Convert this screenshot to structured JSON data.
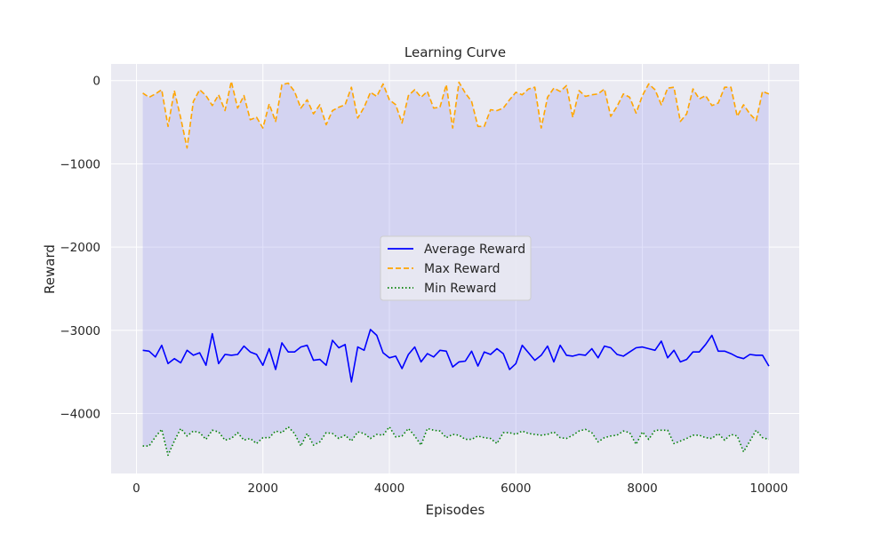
{
  "chart_data": {
    "type": "line",
    "title": "Learning Curve",
    "xlabel": "Episodes",
    "ylabel": "Reward",
    "xlim": [
      -400,
      10480
    ],
    "ylim": [
      -4720,
      200
    ],
    "xticks": [
      0,
      2000,
      4000,
      6000,
      8000,
      10000
    ],
    "yticks": [
      0,
      -1000,
      -2000,
      -3000,
      -4000
    ],
    "xtick_labels": [
      "0",
      "2000",
      "4000",
      "6000",
      "8000",
      "10000"
    ],
    "ytick_labels": [
      "0",
      "−1000",
      "−2000",
      "−3000",
      "−4000"
    ],
    "grid": true,
    "legend_position": "center",
    "fill_between": {
      "upper": "Max Reward",
      "lower": "Min Reward",
      "color": "#a9aaf0"
    },
    "x": [
      100,
      200,
      300,
      400,
      500,
      600,
      700,
      800,
      900,
      1000,
      1100,
      1200,
      1300,
      1400,
      1500,
      1600,
      1700,
      1800,
      1900,
      2000,
      2100,
      2200,
      2300,
      2400,
      2500,
      2600,
      2700,
      2800,
      2900,
      3000,
      3100,
      3200,
      3300,
      3400,
      3500,
      3600,
      3700,
      3800,
      3900,
      4000,
      4100,
      4200,
      4300,
      4400,
      4500,
      4600,
      4700,
      4800,
      4900,
      5000,
      5100,
      5200,
      5300,
      5400,
      5500,
      5600,
      5700,
      5800,
      5900,
      6000,
      6100,
      6200,
      6300,
      6400,
      6500,
      6600,
      6700,
      6800,
      6900,
      7000,
      7100,
      7200,
      7300,
      7400,
      7500,
      7600,
      7700,
      7800,
      7900,
      8000,
      8100,
      8200,
      8300,
      8400,
      8500,
      8600,
      8700,
      8800,
      8900,
      9000,
      9100,
      9200,
      9300,
      9400,
      9500,
      9600,
      9700,
      9800,
      9900,
      10000
    ],
    "series": [
      {
        "name": "Average Reward",
        "color": "#0000ff",
        "style": "solid",
        "values": [
          -3240,
          -3250,
          -3320,
          -3180,
          -3400,
          -3340,
          -3390,
          -3240,
          -3300,
          -3270,
          -3420,
          -3040,
          -3400,
          -3290,
          -3300,
          -3290,
          -3190,
          -3260,
          -3290,
          -3420,
          -3220,
          -3470,
          -3150,
          -3260,
          -3260,
          -3200,
          -3180,
          -3360,
          -3350,
          -3420,
          -3120,
          -3210,
          -3170,
          -3620,
          -3200,
          -3240,
          -2990,
          -3060,
          -3270,
          -3330,
          -3310,
          -3460,
          -3290,
          -3200,
          -3380,
          -3280,
          -3320,
          -3240,
          -3250,
          -3440,
          -3380,
          -3370,
          -3250,
          -3430,
          -3260,
          -3290,
          -3220,
          -3280,
          -3470,
          -3400,
          -3180,
          -3270,
          -3360,
          -3300,
          -3190,
          -3380,
          -3180,
          -3300,
          -3310,
          -3290,
          -3300,
          -3220,
          -3330,
          -3190,
          -3210,
          -3290,
          -3310,
          -3260,
          -3210,
          -3200,
          -3220,
          -3240,
          -3130,
          -3330,
          -3240,
          -3380,
          -3350,
          -3260,
          -3260,
          -3170,
          -3060,
          -3250,
          -3250,
          -3280,
          -3320,
          -3340,
          -3290,
          -3300,
          -3300,
          -3430
        ]
      },
      {
        "name": "Max Reward",
        "color": "#ffa500",
        "style": "dashed",
        "values": [
          -150,
          -200,
          -160,
          -110,
          -550,
          -120,
          -450,
          -810,
          -250,
          -110,
          -180,
          -300,
          -170,
          -360,
          -10,
          -330,
          -180,
          -470,
          -440,
          -570,
          -280,
          -490,
          -50,
          -30,
          -130,
          -330,
          -230,
          -400,
          -290,
          -530,
          -360,
          -320,
          -290,
          -80,
          -450,
          -320,
          -140,
          -190,
          -40,
          -230,
          -290,
          -510,
          -180,
          -110,
          -200,
          -130,
          -330,
          -320,
          -50,
          -570,
          -20,
          -150,
          -250,
          -550,
          -550,
          -350,
          -360,
          -330,
          -230,
          -140,
          -170,
          -100,
          -80,
          -570,
          -200,
          -90,
          -130,
          -60,
          -440,
          -120,
          -190,
          -170,
          -160,
          -100,
          -430,
          -310,
          -160,
          -200,
          -390,
          -180,
          -40,
          -110,
          -290,
          -90,
          -80,
          -490,
          -400,
          -100,
          -220,
          -180,
          -300,
          -270,
          -80,
          -80,
          -430,
          -290,
          -400,
          -480,
          -130,
          -160
        ]
      },
      {
        "name": "Min Reward",
        "color": "#008000",
        "style": "dotted",
        "values": [
          -4390,
          -4390,
          -4280,
          -4190,
          -4500,
          -4330,
          -4180,
          -4270,
          -4210,
          -4230,
          -4310,
          -4200,
          -4220,
          -4320,
          -4300,
          -4230,
          -4320,
          -4300,
          -4360,
          -4290,
          -4290,
          -4210,
          -4230,
          -4160,
          -4240,
          -4390,
          -4240,
          -4380,
          -4340,
          -4230,
          -4240,
          -4300,
          -4260,
          -4330,
          -4220,
          -4240,
          -4300,
          -4250,
          -4260,
          -4160,
          -4280,
          -4270,
          -4180,
          -4270,
          -4380,
          -4180,
          -4200,
          -4210,
          -4290,
          -4250,
          -4260,
          -4310,
          -4310,
          -4270,
          -4290,
          -4300,
          -4360,
          -4230,
          -4230,
          -4250,
          -4210,
          -4240,
          -4250,
          -4260,
          -4250,
          -4220,
          -4290,
          -4300,
          -4260,
          -4210,
          -4190,
          -4230,
          -4340,
          -4290,
          -4270,
          -4260,
          -4210,
          -4230,
          -4370,
          -4220,
          -4310,
          -4200,
          -4200,
          -4200,
          -4360,
          -4330,
          -4300,
          -4260,
          -4260,
          -4290,
          -4300,
          -4240,
          -4320,
          -4250,
          -4270,
          -4460,
          -4330,
          -4200,
          -4290,
          -4310
        ]
      }
    ]
  }
}
